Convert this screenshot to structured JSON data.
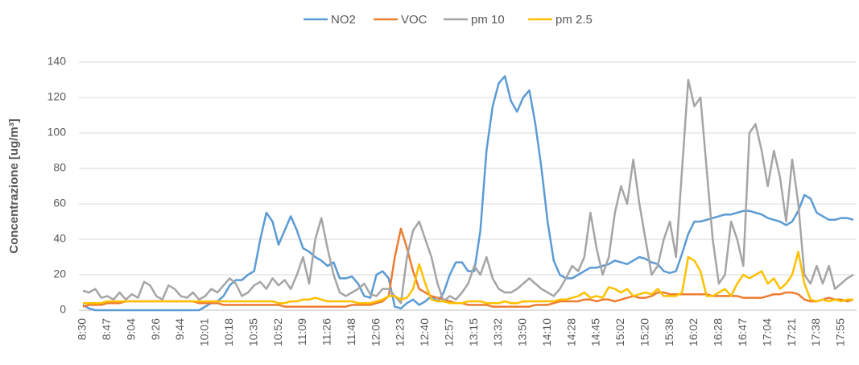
{
  "chart_data": {
    "type": "line",
    "ylabel": "Concentrazione [ug/m³]",
    "ylim": [
      0,
      140
    ],
    "yticks": [
      0,
      20,
      40,
      60,
      80,
      100,
      120,
      140
    ],
    "grid": true,
    "legend": "top",
    "categories": [
      "8:30",
      null,
      null,
      null,
      "8:47",
      null,
      null,
      null,
      "9:04",
      null,
      null,
      null,
      "9:26",
      null,
      null,
      null,
      "9:44",
      null,
      null,
      null,
      "10:01",
      null,
      null,
      null,
      "10:18",
      null,
      null,
      null,
      "10:35",
      null,
      null,
      null,
      "10:52",
      null,
      null,
      null,
      "11:09",
      null,
      null,
      null,
      "11:26",
      null,
      null,
      null,
      "11:48",
      null,
      null,
      null,
      "12:06",
      null,
      null,
      null,
      "12:23",
      null,
      null,
      null,
      "12:40",
      null,
      null,
      null,
      "12:57",
      null,
      null,
      null,
      "13:15",
      null,
      null,
      null,
      "13:32",
      null,
      null,
      null,
      "13:50",
      null,
      null,
      null,
      "14:10",
      null,
      null,
      null,
      "14:28",
      null,
      null,
      null,
      "14:45",
      null,
      null,
      null,
      "15:02",
      null,
      null,
      null,
      "15:20",
      null,
      null,
      null,
      "15:38",
      null,
      null,
      null,
      "16:02",
      null,
      null,
      null,
      "16:28",
      null,
      null,
      null,
      "16:47",
      null,
      null,
      null,
      "17:04",
      null,
      null,
      null,
      "17:21",
      null,
      null,
      null,
      "17:38",
      null,
      null,
      null,
      "17:55",
      null,
      null
    ],
    "series": [
      {
        "name": "NO2",
        "color": "#5b9bd5",
        "values": [
          3,
          1,
          0,
          0,
          0,
          0,
          0,
          0,
          0,
          0,
          0,
          0,
          0,
          0,
          0,
          0,
          0,
          0,
          0,
          0,
          2,
          4,
          5,
          8,
          14,
          17,
          17,
          20,
          22,
          40,
          55,
          50,
          37,
          45,
          53,
          45,
          35,
          33,
          30,
          28,
          25,
          27,
          18,
          18,
          19,
          15,
          8,
          7,
          20,
          22,
          18,
          2,
          1,
          4,
          6,
          3,
          5,
          8,
          5,
          10,
          20,
          27,
          27,
          22,
          22,
          45,
          90,
          115,
          128,
          132,
          118,
          112,
          120,
          124,
          105,
          80,
          50,
          28,
          20,
          18,
          18,
          20,
          22,
          24,
          24,
          25,
          26,
          28,
          27,
          26,
          28,
          30,
          29,
          27,
          26,
          22,
          21,
          22,
          32,
          43,
          50,
          50,
          51,
          52,
          53,
          54,
          54,
          55,
          56,
          56,
          55,
          54,
          52,
          51,
          50,
          48,
          50,
          56,
          65,
          63,
          55,
          53,
          51,
          51,
          52,
          52,
          51
        ]
      },
      {
        "name": "VOC",
        "color": "#ed7d31",
        "values": [
          2,
          3,
          3,
          3,
          4,
          4,
          4,
          5,
          5,
          5,
          5,
          5,
          5,
          5,
          5,
          5,
          5,
          5,
          5,
          4,
          4,
          4,
          4,
          3,
          3,
          3,
          3,
          3,
          3,
          3,
          3,
          3,
          3,
          2,
          2,
          2,
          2,
          2,
          2,
          2,
          2,
          2,
          2,
          2,
          3,
          3,
          3,
          3,
          4,
          5,
          8,
          30,
          46,
          35,
          22,
          12,
          10,
          8,
          7,
          6,
          5,
          4,
          4,
          3,
          3,
          3,
          3,
          2,
          2,
          2,
          2,
          2,
          2,
          2,
          3,
          3,
          3,
          4,
          5,
          5,
          5,
          5,
          6,
          6,
          5,
          6,
          6,
          5,
          6,
          7,
          8,
          7,
          7,
          8,
          10,
          10,
          9,
          9,
          9,
          9,
          9,
          9,
          9,
          8,
          8,
          8,
          8,
          8,
          7,
          7,
          7,
          7,
          8,
          9,
          9,
          10,
          10,
          9,
          6,
          5,
          5,
          6,
          7,
          6,
          6,
          5,
          6
        ]
      },
      {
        "name": "pm 10",
        "color": "#a5a5a5",
        "values": [
          11,
          10,
          12,
          7,
          8,
          6,
          10,
          6,
          9,
          7,
          16,
          14,
          8,
          6,
          14,
          12,
          8,
          7,
          10,
          6,
          8,
          12,
          10,
          14,
          18,
          15,
          8,
          10,
          14,
          16,
          12,
          18,
          14,
          17,
          12,
          20,
          30,
          15,
          40,
          52,
          35,
          20,
          10,
          8,
          10,
          12,
          15,
          9,
          8,
          12,
          12,
          8,
          4,
          30,
          45,
          50,
          40,
          30,
          15,
          5,
          8,
          6,
          10,
          15,
          25,
          20,
          30,
          18,
          12,
          10,
          10,
          12,
          15,
          18,
          15,
          12,
          10,
          8,
          12,
          18,
          25,
          22,
          30,
          55,
          35,
          20,
          30,
          55,
          70,
          60,
          85,
          60,
          40,
          20,
          25,
          40,
          50,
          30,
          80,
          130,
          115,
          120,
          80,
          40,
          15,
          20,
          50,
          40,
          25,
          100,
          105,
          90,
          70,
          90,
          75,
          50,
          85,
          60,
          20,
          15,
          25,
          15,
          25,
          12,
          15,
          18,
          20
        ]
      },
      {
        "name": "pm 2.5",
        "color": "#ffc000",
        "values": [
          4,
          4,
          4,
          4,
          5,
          5,
          5,
          5,
          5,
          5,
          5,
          5,
          5,
          5,
          5,
          5,
          5,
          5,
          5,
          5,
          5,
          5,
          5,
          5,
          5,
          5,
          5,
          5,
          5,
          5,
          5,
          5,
          4,
          4,
          5,
          5,
          6,
          6,
          7,
          6,
          5,
          5,
          5,
          5,
          5,
          4,
          4,
          4,
          5,
          6,
          8,
          8,
          6,
          7,
          12,
          26,
          15,
          6,
          5,
          5,
          4,
          4,
          4,
          5,
          5,
          5,
          4,
          4,
          4,
          5,
          4,
          4,
          5,
          5,
          5,
          5,
          5,
          5,
          6,
          6,
          7,
          8,
          10,
          7,
          8,
          7,
          13,
          12,
          10,
          12,
          8,
          9,
          10,
          9,
          12,
          8,
          8,
          8,
          10,
          30,
          28,
          22,
          8,
          8,
          10,
          12,
          8,
          15,
          20,
          18,
          20,
          22,
          15,
          18,
          12,
          15,
          20,
          33,
          15,
          6,
          5,
          6,
          5,
          6,
          5,
          6,
          6
        ]
      }
    ]
  }
}
